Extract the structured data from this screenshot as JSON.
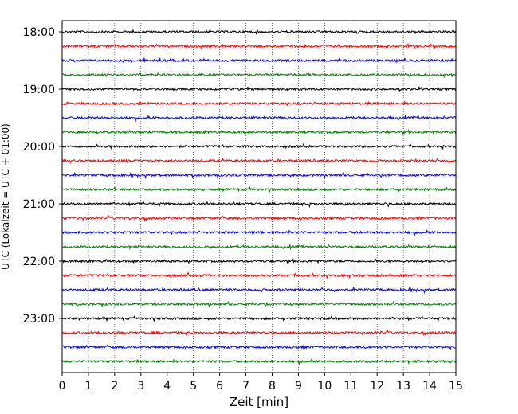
{
  "chart_data": {
    "type": "line",
    "title": "",
    "xlabel": "Zeit  [min]",
    "ylabel": "UTC (Lokalzeit = UTC + 01:00)",
    "xlim": [
      0,
      15
    ],
    "x_ticks": [
      0,
      1,
      2,
      3,
      4,
      5,
      6,
      7,
      8,
      9,
      10,
      11,
      12,
      13,
      14,
      15
    ],
    "x_tick_labels": [
      "0",
      "1",
      "2",
      "3",
      "4",
      "5",
      "6",
      "7",
      "8",
      "9",
      "10",
      "11",
      "12",
      "13",
      "14",
      "15"
    ],
    "y_tick_labels": [
      "18:00",
      "19:00",
      "20:00",
      "21:00",
      "22:00",
      "23:00"
    ],
    "trace_start_times": [
      "18:00",
      "18:15",
      "18:30",
      "18:45",
      "19:00",
      "19:15",
      "19:30",
      "19:45",
      "20:00",
      "20:15",
      "20:30",
      "20:45",
      "21:00",
      "21:15",
      "21:30",
      "21:45",
      "22:00",
      "22:15",
      "22:30",
      "22:45",
      "23:00",
      "23:15",
      "23:30",
      "23:45"
    ],
    "trace_minutes": 15,
    "trace_colors": [
      "#000000",
      "#ff0000",
      "#0000ff",
      "#008000"
    ],
    "x_grid": true,
    "legend": "none"
  }
}
